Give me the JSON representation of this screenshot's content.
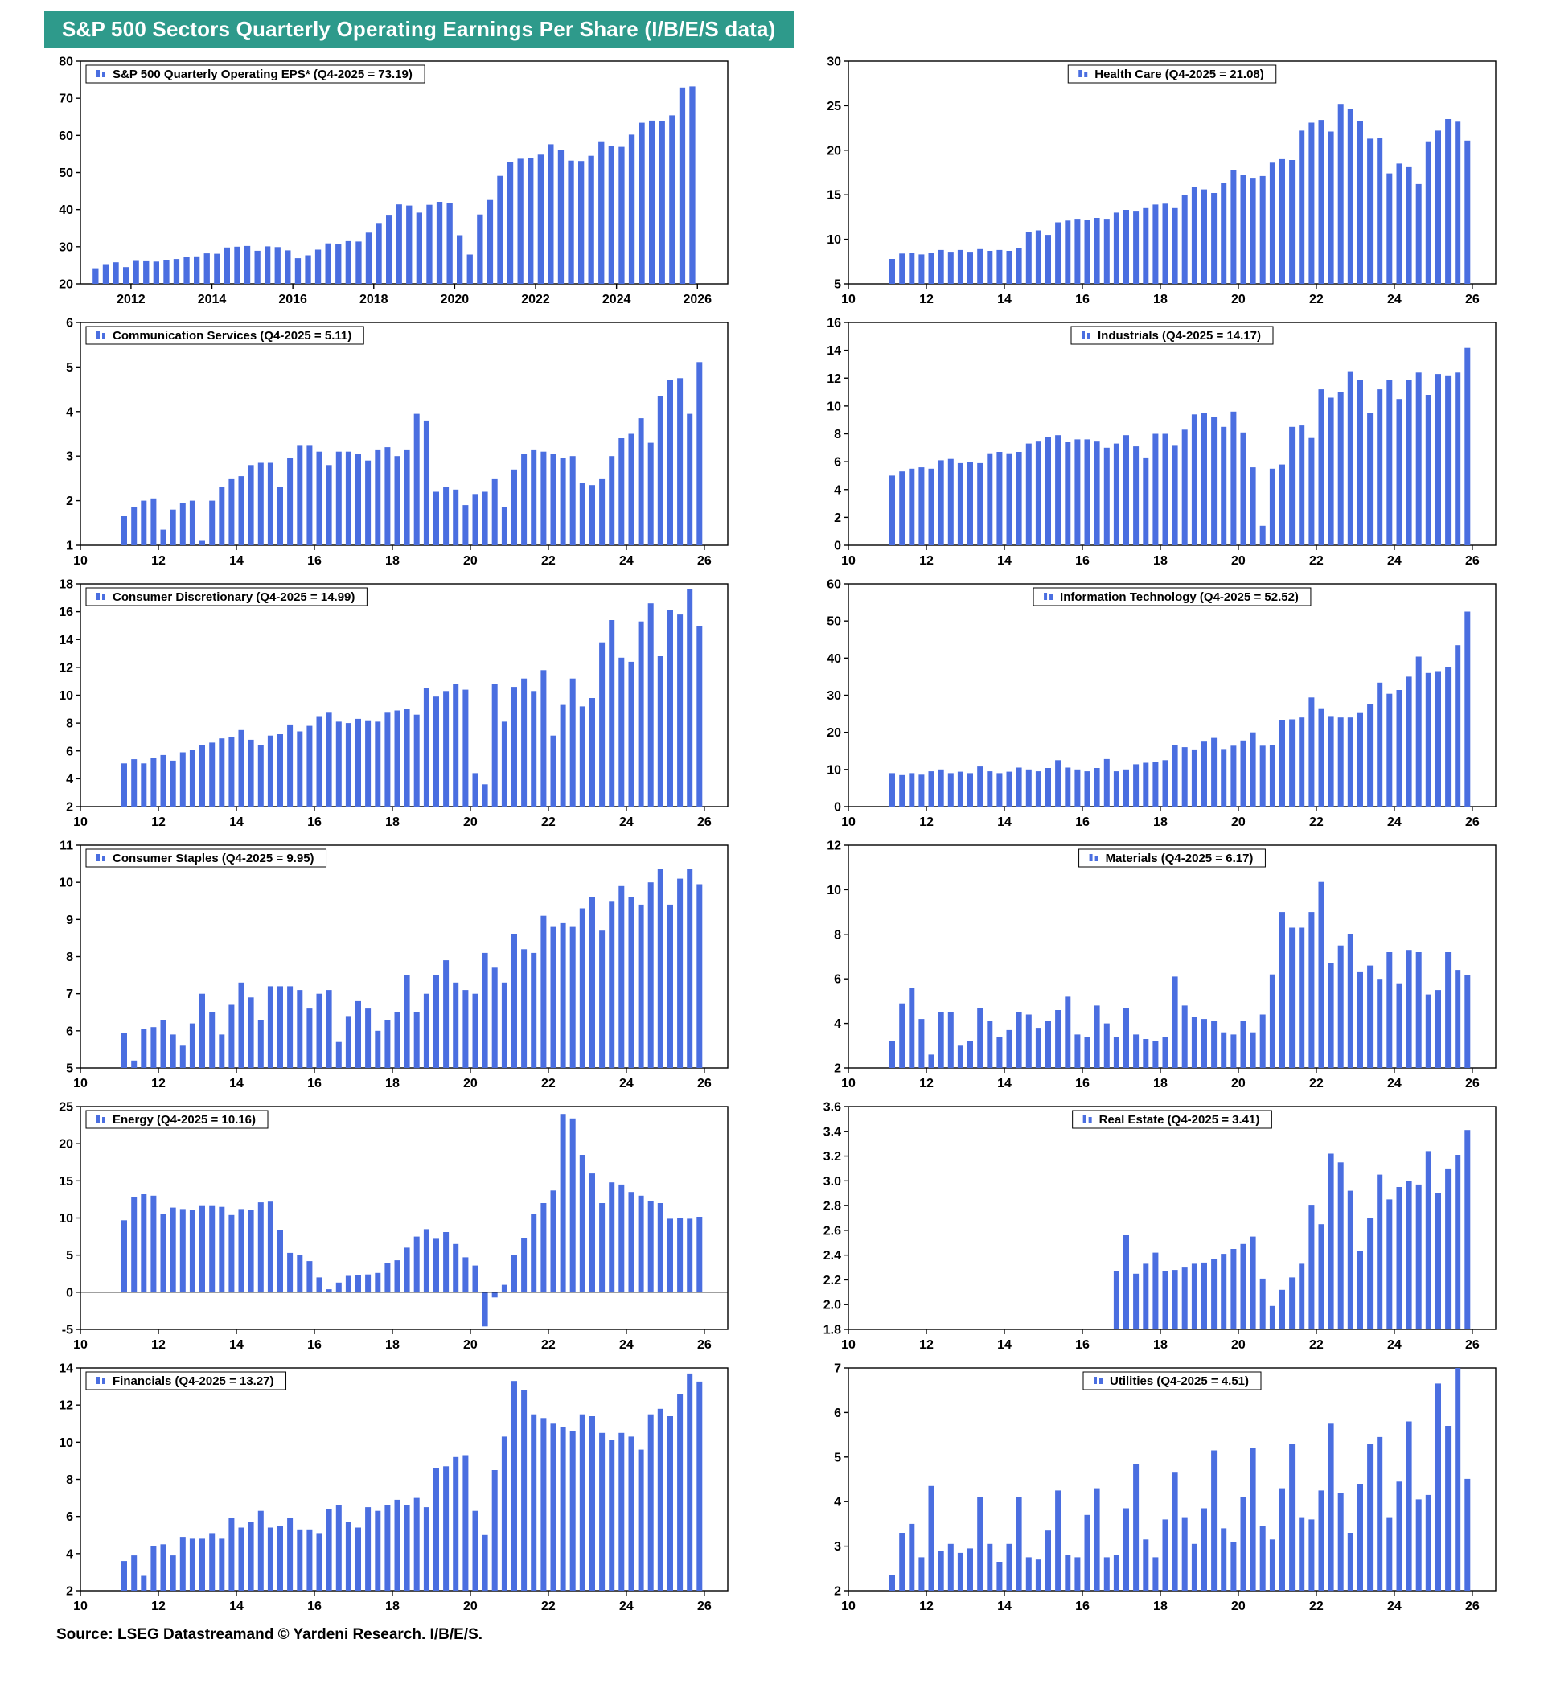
{
  "page": {
    "title": "S&P 500 Sectors Quarterly Operating Earnings Per Share (I/B/E/S data)",
    "source": "Source: LSEG Datastreamand © Yardeni Research. I/B/E/S."
  },
  "colors": {
    "bar": "#4a6ee0",
    "title_bg": "#2e9a8b",
    "title_text": "#ffffff",
    "axis": "#000000"
  },
  "chart_data": [
    {
      "id": "sp500-eps",
      "type": "bar",
      "legend": "S&P 500 Quarterly Operating EPS* (Q4-2025 = 73.19)",
      "legend_pos": "left",
      "ymin": 20,
      "ymax": 80,
      "yticks": [
        20,
        30,
        40,
        50,
        60,
        70,
        80
      ],
      "ydec": 0,
      "xmin": 2010.75,
      "xmax": 2026.75,
      "xtick_start": 2012,
      "xtick_step": 2,
      "xtick_end": 2026,
      "xtick_fmt": "full",
      "x_start": 2011.0,
      "dx": 0.25,
      "values": [
        24.2,
        25.3,
        25.8,
        24.5,
        26.4,
        26.3,
        26.0,
        26.5,
        26.7,
        27.2,
        27.4,
        28.2,
        28.1,
        29.8,
        30.0,
        30.2,
        28.9,
        30.1,
        29.9,
        29.0,
        26.9,
        27.7,
        29.2,
        30.9,
        30.8,
        31.5,
        31.4,
        33.8,
        36.4,
        38.6,
        41.4,
        41.1,
        39.2,
        41.3,
        42.1,
        41.8,
        33.1,
        27.9,
        38.7,
        42.6,
        49.1,
        52.8,
        53.7,
        53.9,
        54.8,
        57.6,
        56.1,
        53.2,
        53.1,
        54.5,
        58.4,
        57.2,
        56.9,
        60.2,
        63.4,
        64.0,
        63.9,
        65.4,
        72.9,
        73.19
      ]
    },
    {
      "id": "health-care",
      "type": "bar",
      "legend": "Health Care (Q4-2025 = 21.08)",
      "legend_pos": "center",
      "ymin": 5,
      "ymax": 30,
      "yticks": [
        5,
        10,
        15,
        20,
        25,
        30
      ],
      "ydec": 0,
      "xmin": 2010,
      "xmax": 2026.6,
      "xtick_start": 2010,
      "xtick_step": 2,
      "xtick_end": 2026,
      "xtick_fmt": "short",
      "x_start": 2011.0,
      "dx": 0.25,
      "values": [
        7.8,
        8.4,
        8.5,
        8.3,
        8.5,
        8.8,
        8.6,
        8.8,
        8.6,
        8.9,
        8.7,
        8.8,
        8.7,
        9.0,
        10.8,
        11.0,
        10.5,
        11.9,
        12.1,
        12.3,
        12.2,
        12.4,
        12.3,
        13.0,
        13.3,
        13.2,
        13.5,
        13.9,
        14.0,
        13.5,
        15.0,
        15.9,
        15.6,
        15.2,
        16.3,
        17.8,
        17.2,
        16.9,
        17.1,
        18.6,
        19.0,
        18.9,
        22.2,
        23.1,
        23.4,
        22.1,
        25.2,
        24.6,
        23.3,
        21.3,
        21.4,
        17.4,
        18.5,
        18.1,
        16.2,
        21.0,
        22.2,
        23.5,
        23.2,
        21.08
      ]
    },
    {
      "id": "communication-services",
      "type": "bar",
      "legend": "Communication Services (Q4-2025 = 5.11)",
      "legend_pos": "left",
      "ymin": 1,
      "ymax": 6,
      "yticks": [
        1,
        2,
        3,
        4,
        5,
        6
      ],
      "ydec": 0,
      "xmin": 2010,
      "xmax": 2026.6,
      "xtick_start": 2010,
      "xtick_step": 2,
      "xtick_end": 2026,
      "xtick_fmt": "short",
      "x_start": 2011.0,
      "dx": 0.25,
      "values": [
        1.65,
        1.85,
        2.0,
        2.05,
        1.35,
        1.8,
        1.95,
        2.0,
        1.1,
        2.0,
        2.3,
        2.5,
        2.55,
        2.8,
        2.85,
        2.85,
        2.3,
        2.95,
        3.25,
        3.25,
        3.1,
        2.8,
        3.1,
        3.1,
        3.05,
        2.9,
        3.15,
        3.2,
        3.0,
        3.15,
        3.95,
        3.8,
        2.2,
        2.3,
        2.25,
        1.9,
        2.15,
        2.2,
        2.5,
        1.85,
        2.7,
        3.05,
        3.15,
        3.1,
        3.05,
        2.95,
        3.0,
        2.4,
        2.35,
        2.5,
        3.0,
        3.4,
        3.5,
        3.85,
        3.3,
        4.35,
        4.7,
        4.75,
        3.95,
        5.11
      ]
    },
    {
      "id": "industrials",
      "type": "bar",
      "legend": "Industrials (Q4-2025 = 14.17)",
      "legend_pos": "center",
      "ymin": 0,
      "ymax": 16,
      "yticks": [
        0,
        2,
        4,
        6,
        8,
        10,
        12,
        14,
        16
      ],
      "ydec": 0,
      "xmin": 2010,
      "xmax": 2026.6,
      "xtick_start": 2010,
      "xtick_step": 2,
      "xtick_end": 2026,
      "xtick_fmt": "short",
      "x_start": 2011.0,
      "dx": 0.25,
      "values": [
        5.0,
        5.3,
        5.5,
        5.6,
        5.5,
        6.1,
        6.2,
        5.9,
        6.0,
        5.9,
        6.6,
        6.7,
        6.6,
        6.7,
        7.3,
        7.5,
        7.8,
        7.9,
        7.4,
        7.6,
        7.6,
        7.5,
        7.0,
        7.3,
        7.9,
        7.1,
        6.3,
        8.0,
        8.0,
        7.2,
        8.3,
        9.4,
        9.5,
        9.2,
        8.5,
        9.6,
        8.1,
        5.6,
        1.4,
        5.5,
        5.8,
        8.5,
        8.6,
        7.7,
        11.2,
        10.6,
        11.0,
        12.5,
        11.9,
        9.5,
        11.2,
        11.9,
        10.5,
        11.9,
        12.4,
        10.8,
        12.3,
        12.2,
        12.4,
        14.17
      ]
    },
    {
      "id": "consumer-discretionary",
      "type": "bar",
      "legend": "Consumer Discretionary (Q4-2025 = 14.99)",
      "legend_pos": "left",
      "ymin": 2,
      "ymax": 18,
      "yticks": [
        2,
        4,
        6,
        8,
        10,
        12,
        14,
        16,
        18
      ],
      "ydec": 0,
      "xmin": 2010,
      "xmax": 2026.6,
      "xtick_start": 2010,
      "xtick_step": 2,
      "xtick_end": 2026,
      "xtick_fmt": "short",
      "x_start": 2011.0,
      "dx": 0.25,
      "values": [
        5.1,
        5.4,
        5.1,
        5.5,
        5.7,
        5.3,
        5.9,
        6.1,
        6.4,
        6.6,
        6.9,
        7.0,
        7.5,
        6.8,
        6.4,
        7.1,
        7.2,
        7.9,
        7.4,
        7.8,
        8.5,
        8.8,
        8.1,
        8.0,
        8.3,
        8.2,
        8.1,
        8.8,
        8.9,
        9.0,
        8.6,
        10.5,
        9.9,
        10.3,
        10.8,
        10.4,
        4.4,
        3.6,
        10.8,
        8.1,
        10.6,
        11.2,
        10.3,
        11.8,
        7.1,
        9.3,
        11.2,
        9.2,
        9.8,
        13.8,
        15.4,
        12.7,
        12.4,
        15.3,
        16.6,
        12.8,
        16.1,
        15.8,
        17.6,
        14.99
      ]
    },
    {
      "id": "information-technology",
      "type": "bar",
      "legend": "Information Technology (Q4-2025 = 52.52)",
      "legend_pos": "center",
      "ymin": 0,
      "ymax": 60,
      "yticks": [
        0,
        10,
        20,
        30,
        40,
        50,
        60
      ],
      "ydec": 0,
      "xmin": 2010,
      "xmax": 2026.6,
      "xtick_start": 2010,
      "xtick_step": 2,
      "xtick_end": 2026,
      "xtick_fmt": "short",
      "x_start": 2011.0,
      "dx": 0.25,
      "values": [
        9.0,
        8.5,
        9.0,
        8.6,
        9.5,
        10.0,
        9.0,
        9.4,
        9.0,
        10.8,
        9.5,
        9.0,
        9.4,
        10.5,
        10.0,
        9.5,
        10.4,
        12.5,
        10.5,
        10.0,
        9.5,
        10.4,
        12.8,
        9.5,
        10.0,
        11.4,
        11.8,
        12.0,
        12.5,
        16.5,
        16.0,
        15.4,
        17.5,
        18.5,
        15.5,
        16.4,
        17.8,
        20.0,
        16.4,
        16.5,
        23.4,
        23.5,
        24.0,
        29.4,
        26.5,
        24.4,
        24.0,
        24.0,
        25.4,
        27.5,
        33.4,
        30.4,
        31.4,
        35.0,
        40.4,
        36.0,
        36.5,
        37.5,
        43.5,
        52.52
      ]
    },
    {
      "id": "consumer-staples",
      "type": "bar",
      "legend": "Consumer Staples (Q4-2025 = 9.95)",
      "legend_pos": "left",
      "ymin": 5,
      "ymax": 11,
      "yticks": [
        5,
        6,
        7,
        8,
        9,
        10,
        11
      ],
      "ydec": 0,
      "xmin": 2010,
      "xmax": 2026.6,
      "xtick_start": 2010,
      "xtick_step": 2,
      "xtick_end": 2026,
      "xtick_fmt": "short",
      "x_start": 2011.0,
      "dx": 0.25,
      "values": [
        5.95,
        5.2,
        6.05,
        6.1,
        6.3,
        5.9,
        5.6,
        6.2,
        7.0,
        6.5,
        5.9,
        6.7,
        7.3,
        6.9,
        6.3,
        7.2,
        7.2,
        7.2,
        7.1,
        6.6,
        7.0,
        7.1,
        5.7,
        6.4,
        6.8,
        6.6,
        6.0,
        6.3,
        6.5,
        7.5,
        6.5,
        7.0,
        7.5,
        7.9,
        7.3,
        7.1,
        7.0,
        8.1,
        7.7,
        7.3,
        8.6,
        8.2,
        8.1,
        9.1,
        8.8,
        8.9,
        8.8,
        9.3,
        9.6,
        8.7,
        9.5,
        9.9,
        9.6,
        9.4,
        10.0,
        10.35,
        9.4,
        10.1,
        10.35,
        9.95
      ]
    },
    {
      "id": "materials",
      "type": "bar",
      "legend": "Materials (Q4-2025 = 6.17)",
      "legend_pos": "center",
      "ymin": 2,
      "ymax": 12,
      "yticks": [
        2,
        4,
        6,
        8,
        10,
        12
      ],
      "ydec": 0,
      "xmin": 2010,
      "xmax": 2026.6,
      "xtick_start": 2010,
      "xtick_step": 2,
      "xtick_end": 2026,
      "xtick_fmt": "short",
      "x_start": 2011.0,
      "dx": 0.25,
      "values": [
        3.2,
        4.9,
        5.6,
        4.2,
        2.6,
        4.5,
        4.5,
        3.0,
        3.2,
        4.7,
        4.1,
        3.4,
        3.7,
        4.5,
        4.4,
        3.8,
        4.1,
        4.6,
        5.2,
        3.5,
        3.4,
        4.8,
        4.0,
        3.4,
        4.7,
        3.5,
        3.3,
        3.2,
        3.4,
        6.1,
        4.8,
        4.3,
        4.2,
        4.1,
        3.6,
        3.5,
        4.1,
        3.6,
        4.4,
        6.2,
        9.0,
        8.3,
        8.3,
        9.0,
        10.35,
        6.7,
        7.5,
        8.0,
        6.3,
        6.6,
        6.0,
        7.2,
        5.8,
        7.3,
        7.2,
        5.3,
        5.5,
        7.2,
        6.4,
        6.17
      ]
    },
    {
      "id": "energy",
      "type": "bar",
      "legend": "Energy (Q4-2025 = 10.16)",
      "legend_pos": "left",
      "ymin": -5,
      "ymax": 25,
      "yticks": [
        -5,
        0,
        5,
        10,
        15,
        20,
        25
      ],
      "ydec": 0,
      "xmin": 2010,
      "xmax": 2026.6,
      "xtick_start": 2010,
      "xtick_step": 2,
      "xtick_end": 2026,
      "xtick_fmt": "short",
      "x_start": 2011.0,
      "dx": 0.25,
      "values": [
        9.7,
        12.8,
        13.2,
        13.0,
        10.6,
        11.4,
        11.2,
        11.1,
        11.6,
        11.6,
        11.5,
        10.4,
        11.2,
        11.1,
        12.1,
        12.2,
        8.4,
        5.3,
        5.0,
        4.2,
        2.0,
        0.4,
        1.3,
        2.2,
        2.3,
        2.4,
        2.6,
        3.9,
        4.3,
        6.0,
        7.5,
        8.5,
        7.2,
        8.1,
        6.5,
        4.7,
        3.6,
        -4.6,
        -0.7,
        1.0,
        5.0,
        7.3,
        10.5,
        12.0,
        13.7,
        24.0,
        23.4,
        18.5,
        16.0,
        12.0,
        14.8,
        14.5,
        13.5,
        13.0,
        12.3,
        12.0,
        9.9,
        10.0,
        9.9,
        10.16
      ]
    },
    {
      "id": "real-estate",
      "type": "bar",
      "legend": "Real Estate (Q4-2025 = 3.41)",
      "legend_pos": "center",
      "ymin": 1.8,
      "ymax": 3.6,
      "yticks": [
        1.8,
        2.0,
        2.2,
        2.4,
        2.6,
        2.8,
        3.0,
        3.2,
        3.4,
        3.6
      ],
      "ydec": 1,
      "xmin": 2010,
      "xmax": 2026.6,
      "xtick_start": 2010,
      "xtick_step": 2,
      "xtick_end": 2026,
      "xtick_fmt": "short",
      "x_start": 2016.75,
      "dx": 0.25,
      "values": [
        2.27,
        2.56,
        2.25,
        2.33,
        2.42,
        2.27,
        2.28,
        2.3,
        2.33,
        2.34,
        2.37,
        2.41,
        2.45,
        2.49,
        2.55,
        2.21,
        1.99,
        2.12,
        2.22,
        2.33,
        2.8,
        2.65,
        3.22,
        3.15,
        2.92,
        2.43,
        2.7,
        3.05,
        2.85,
        2.95,
        3.0,
        2.97,
        3.24,
        2.9,
        3.1,
        3.21,
        3.41
      ]
    },
    {
      "id": "financials",
      "type": "bar",
      "legend": "Financials (Q4-2025 = 13.27)",
      "legend_pos": "left",
      "ymin": 2,
      "ymax": 14,
      "yticks": [
        2,
        4,
        6,
        8,
        10,
        12,
        14
      ],
      "ydec": 0,
      "xmin": 2010,
      "xmax": 2026.6,
      "xtick_start": 2010,
      "xtick_step": 2,
      "xtick_end": 2026,
      "xtick_fmt": "short",
      "x_start": 2011.0,
      "dx": 0.25,
      "values": [
        3.6,
        3.9,
        2.8,
        4.4,
        4.5,
        3.9,
        4.9,
        4.8,
        4.8,
        5.1,
        4.8,
        5.9,
        5.4,
        5.7,
        6.3,
        5.4,
        5.5,
        5.9,
        5.3,
        5.3,
        5.1,
        6.4,
        6.6,
        5.7,
        5.4,
        6.5,
        6.3,
        6.6,
        6.9,
        6.6,
        7.0,
        6.5,
        8.6,
        8.7,
        9.2,
        9.3,
        6.3,
        5.0,
        8.5,
        10.3,
        13.3,
        12.8,
        11.5,
        11.3,
        11.0,
        10.8,
        10.6,
        11.5,
        11.4,
        10.5,
        10.1,
        10.5,
        10.3,
        9.6,
        11.5,
        11.8,
        11.4,
        12.6,
        13.7,
        13.27
      ]
    },
    {
      "id": "utilities",
      "type": "bar",
      "legend": "Utilities (Q4-2025 = 4.51)",
      "legend_pos": "center",
      "ymin": 2,
      "ymax": 7,
      "yticks": [
        2,
        3,
        4,
        5,
        6,
        7
      ],
      "ydec": 0,
      "xmin": 2010,
      "xmax": 2026.6,
      "xtick_start": 2010,
      "xtick_step": 2,
      "xtick_end": 2026,
      "xtick_fmt": "short",
      "x_start": 2011.0,
      "dx": 0.25,
      "values": [
        2.35,
        3.3,
        3.5,
        2.75,
        4.35,
        2.9,
        3.05,
        2.85,
        2.95,
        4.1,
        3.05,
        2.65,
        3.05,
        4.1,
        2.75,
        2.7,
        3.35,
        4.25,
        2.8,
        2.75,
        3.7,
        4.3,
        2.75,
        2.8,
        3.85,
        4.85,
        3.15,
        2.75,
        3.6,
        4.65,
        3.65,
        3.05,
        3.85,
        5.15,
        3.4,
        3.1,
        4.1,
        5.2,
        3.45,
        3.15,
        4.3,
        5.3,
        3.65,
        3.6,
        4.25,
        5.75,
        4.2,
        3.3,
        4.4,
        5.3,
        5.45,
        3.65,
        4.45,
        5.8,
        4.05,
        4.15,
        6.65,
        5.7,
        7.0,
        4.51
      ]
    }
  ]
}
